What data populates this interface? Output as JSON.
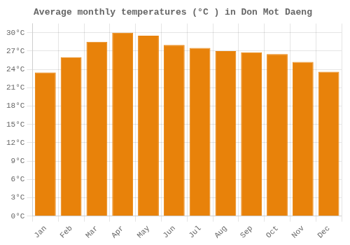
{
  "chart_data": {
    "type": "bar",
    "title": "Average monthly temperatures (°C ) in Don Mot Daeng",
    "categories": [
      "Jan",
      "Feb",
      "Mar",
      "Apr",
      "May",
      "Jun",
      "Jul",
      "Aug",
      "Sep",
      "Oct",
      "Nov",
      "Dec"
    ],
    "values": [
      23.5,
      26.0,
      28.5,
      30.0,
      29.5,
      28.0,
      27.5,
      27.0,
      26.8,
      26.5,
      25.2,
      23.6
    ],
    "color": "#E8820A",
    "ylim": [
      0,
      31.5
    ],
    "yticks": [
      {
        "value": 0,
        "label": "0°C"
      },
      {
        "value": 3,
        "label": "3°C"
      },
      {
        "value": 6,
        "label": "6°C"
      },
      {
        "value": 9,
        "label": "9°C"
      },
      {
        "value": 12,
        "label": "12°C"
      },
      {
        "value": 15,
        "label": "15°C"
      },
      {
        "value": 18,
        "label": "18°C"
      },
      {
        "value": 21,
        "label": "21°C"
      },
      {
        "value": 24,
        "label": "24°C"
      },
      {
        "value": 27,
        "label": "27°C"
      },
      {
        "value": 30,
        "label": "30°C"
      }
    ],
    "grid": true
  }
}
